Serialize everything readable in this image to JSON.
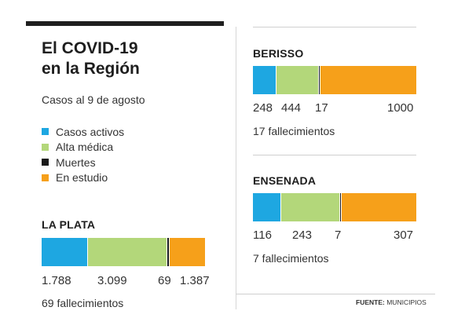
{
  "header": {
    "title_line1": "El COVID-19",
    "title_line2": "en la Región",
    "subtitle": "Casos al 9 de agosto"
  },
  "legend": [
    {
      "label": "Casos activos",
      "color": "#1ea7e1"
    },
    {
      "label": "Alta médica",
      "color": "#b3d77a"
    },
    {
      "label": "Muertes",
      "color": "#1a1a1a"
    },
    {
      "label": "En estudio",
      "color": "#f6a01a"
    }
  ],
  "source": {
    "label": "FUENTE:",
    "text": "MUNICIPIOS"
  },
  "chart_data": [
    {
      "type": "bar",
      "title": "LA PLATA",
      "categories": [
        "Casos activos",
        "Alta médica",
        "Muertes",
        "En estudio"
      ],
      "values": [
        1788,
        3099,
        69,
        1387
      ],
      "value_labels": [
        "1.788",
        "3.099",
        "69",
        "1.387"
      ],
      "note": "69 fallecimientos"
    },
    {
      "type": "bar",
      "title": "BERISSO",
      "categories": [
        "Casos activos",
        "Alta médica",
        "Muertes",
        "En estudio"
      ],
      "values": [
        248,
        444,
        17,
        1000
      ],
      "value_labels": [
        "248",
        "444",
        "17",
        "1000"
      ],
      "note": "17 fallecimientos"
    },
    {
      "type": "bar",
      "title": "ENSENADA",
      "categories": [
        "Casos activos",
        "Alta médica",
        "Muertes",
        "En estudio"
      ],
      "values": [
        116,
        243,
        7,
        307
      ],
      "value_labels": [
        "116",
        "243",
        "7",
        "307"
      ],
      "note": "7 fallecimientos"
    }
  ]
}
